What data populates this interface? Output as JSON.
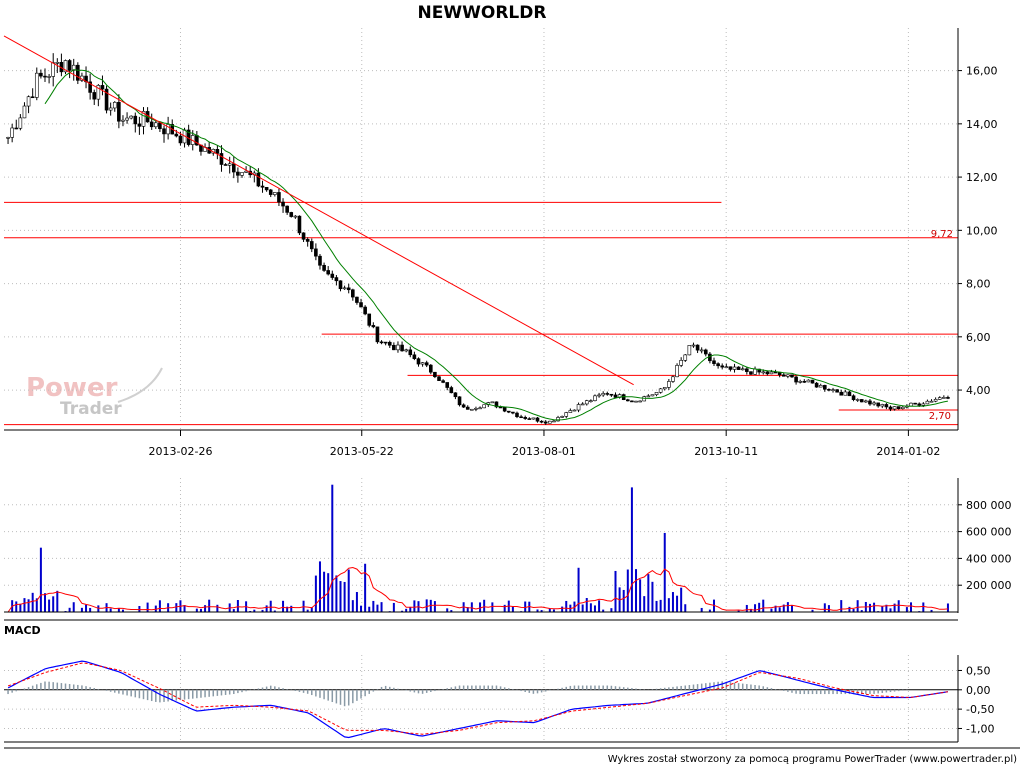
{
  "chart_data": [
    {
      "type": "candlestick",
      "title": "NEWWORLDR",
      "x_tick_labels": [
        "2013-02-26",
        "2013-05-22",
        "2013-08-01",
        "2013-10-11",
        "2014-01-02"
      ],
      "y_ticks": [
        4,
        6,
        8,
        10,
        12,
        14,
        16
      ],
      "y_tick_labels": [
        "4,00",
        "6,00",
        "8,00",
        "10,00",
        "12,00",
        "14,00",
        "16,00"
      ],
      "ylim": [
        2.5,
        17.6
      ],
      "grid": true,
      "close_series_approx": [
        13.5,
        15.6,
        16.4,
        15.3,
        14.2,
        14.1,
        13.6,
        13.0,
        12.4,
        11.6,
        10.6,
        8.4,
        7.8,
        5.9,
        5.4,
        4.6,
        3.3,
        3.5,
        3.0,
        2.8,
        3.4,
        3.9,
        3.6,
        4.0,
        5.7,
        4.8,
        4.7,
        4.6,
        4.3,
        4.0,
        3.6,
        3.3,
        3.5,
        3.8
      ],
      "moving_average_color": "#008000",
      "annotations": [
        {
          "text": "9,72",
          "value": 9.72,
          "color": "#cc0000"
        },
        {
          "text": "2,70",
          "value": 2.7,
          "color": "#cc0000"
        }
      ],
      "horizontal_lines": [
        11.05,
        9.72,
        6.1,
        4.55,
        3.25,
        2.7
      ],
      "trend_line": {
        "from": [
          0,
          17.3
        ],
        "to": [
          0.66,
          4.2
        ]
      }
    },
    {
      "type": "bar",
      "name": "volume",
      "y_ticks": [
        200000,
        400000,
        600000,
        800000
      ],
      "y_tick_labels": [
        "200 000",
        "400 000",
        "600 000",
        "800 000"
      ],
      "ylim": [
        0,
        1000000
      ],
      "bar_color": "#0000cc",
      "moving_average_color": "#ff0000",
      "spikes": [
        {
          "position": 0.345,
          "value": 950000
        },
        {
          "position": 0.665,
          "value": 930000
        },
        {
          "position": 0.7,
          "value": 590000
        },
        {
          "position": 0.035,
          "value": 480000
        },
        {
          "position": 0.605,
          "value": 330000
        },
        {
          "position": 0.38,
          "value": 360000
        }
      ]
    },
    {
      "type": "line",
      "title": "MACD",
      "y_ticks": [
        0.5,
        0,
        -0.5,
        -1
      ],
      "y_tick_labels": [
        "0,50",
        "0,00",
        "-0,50",
        "-1,00"
      ],
      "ylim": [
        -1.35,
        0.9
      ],
      "series": [
        {
          "color": "#0000ff",
          "values": [
            0.05,
            0.55,
            0.75,
            0.45,
            -0.1,
            -0.55,
            -0.45,
            -0.4,
            -0.6,
            -1.25,
            -1.0,
            -1.2,
            -1.0,
            -0.8,
            -0.85,
            -0.5,
            -0.4,
            -0.35,
            -0.1,
            0.15,
            0.5,
            0.25,
            0.0,
            -0.2,
            -0.2,
            -0.05
          ]
        },
        {
          "color": "#ff0000",
          "values": [
            0.1,
            0.45,
            0.7,
            0.5,
            0.05,
            -0.45,
            -0.4,
            -0.45,
            -0.55,
            -1.05,
            -1.05,
            -1.15,
            -1.05,
            -0.85,
            -0.8,
            -0.55,
            -0.45,
            -0.35,
            -0.15,
            0.05,
            0.45,
            0.3,
            0.05,
            -0.15,
            -0.2,
            -0.05
          ]
        }
      ],
      "histogram_color": "#8a9aa6"
    }
  ],
  "footer": "Wykres został stworzony za pomocą programu PowerTrader (www.powertrader.pl)",
  "logo": {
    "line1": "Power",
    "line2": "Trader"
  }
}
